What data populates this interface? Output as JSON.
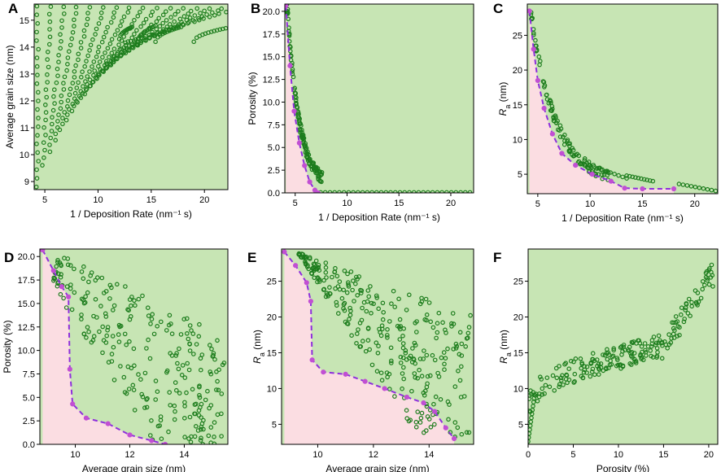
{
  "chart_data": [
    {
      "label": "A",
      "type": "scatter",
      "xlabel": "1 / Deposition Rate (nm⁻¹ s)",
      "ylabel": "Average grain size (nm)",
      "xlim": [
        4,
        22.2
      ],
      "ylim": [
        8.7,
        15.6
      ],
      "xticks": [
        5,
        10,
        15,
        20
      ],
      "yticks": [
        9,
        10,
        11,
        12,
        13,
        14,
        15
      ],
      "generator": "A",
      "frontier": []
    },
    {
      "label": "B",
      "type": "scatter",
      "xlabel": "1 / Deposition Rate (nm⁻¹ s)",
      "ylabel": "Porosity (%)",
      "xlim": [
        4,
        22.2
      ],
      "ylim": [
        0,
        20.8
      ],
      "xticks": [
        5,
        10,
        15,
        20
      ],
      "yticks": [
        0.0,
        2.5,
        5.0,
        7.5,
        10.0,
        12.5,
        15.0,
        17.5,
        20.0
      ],
      "tick_labels_y": [
        "0.0",
        "2.5",
        "5.0",
        "7.5",
        "10.0",
        "12.5",
        "15.0",
        "17.5",
        "20.0"
      ],
      "generator": "B",
      "frontier": [
        [
          4.1,
          20.6
        ],
        [
          4.5,
          14.0
        ],
        [
          4.9,
          9.0
        ],
        [
          5.4,
          5.5
        ],
        [
          5.9,
          3.0
        ],
        [
          6.4,
          1.2
        ],
        [
          6.9,
          0.3
        ],
        [
          7.2,
          0.0
        ]
      ]
    },
    {
      "label": "C",
      "type": "scatter",
      "xlabel": "1 / Deposition Rate (nm⁻¹ s)",
      "ylabel": "R_a (nm)",
      "ylabel_main": "R",
      "ylabel_sub": "a",
      "ylabel_unit": " (nm)",
      "xlim": [
        4,
        22.2
      ],
      "ylim": [
        2.2,
        29.5
      ],
      "xticks": [
        5,
        10,
        15,
        20
      ],
      "yticks": [
        5,
        10,
        15,
        20,
        25
      ],
      "generator": "C",
      "frontier": [
        [
          4.2,
          28.5
        ],
        [
          4.6,
          23
        ],
        [
          5.0,
          18.5
        ],
        [
          5.6,
          14.5
        ],
        [
          6.4,
          10.8
        ],
        [
          7.3,
          8.0
        ],
        [
          8.6,
          6.3
        ],
        [
          10.2,
          5.0
        ],
        [
          12.0,
          4.0
        ],
        [
          13.3,
          3.0
        ],
        [
          15.0,
          2.9
        ],
        [
          18.0,
          2.9
        ]
      ]
    },
    {
      "label": "D",
      "type": "scatter",
      "xlabel": "Average grain size (nm)",
      "ylabel": "Porosity (%)",
      "xlim": [
        8.7,
        15.6
      ],
      "ylim": [
        0,
        20.8
      ],
      "xticks": [
        10,
        12,
        14
      ],
      "yticks": [
        0.0,
        2.5,
        5.0,
        7.5,
        10.0,
        12.5,
        15.0,
        17.5,
        20.0
      ],
      "tick_labels_y": [
        "0.0",
        "2.5",
        "5.0",
        "7.5",
        "10.0",
        "12.5",
        "15.0",
        "17.5",
        "20.0"
      ],
      "generator": "D",
      "frontier": [
        [
          8.8,
          20.7
        ],
        [
          9.2,
          18.5
        ],
        [
          9.5,
          16.8
        ],
        [
          9.75,
          15.7
        ],
        [
          9.8,
          8.0
        ],
        [
          9.9,
          4.3
        ],
        [
          10.4,
          2.8
        ],
        [
          11.2,
          2.2
        ],
        [
          12.0,
          1.0
        ],
        [
          12.8,
          0.4
        ],
        [
          13.3,
          0.0
        ]
      ]
    },
    {
      "label": "E",
      "type": "scatter",
      "xlabel": "Average grain size (nm)",
      "ylabel": "R_a (nm)",
      "ylabel_main": "R",
      "ylabel_sub": "a",
      "ylabel_unit": " (nm)",
      "xlim": [
        8.7,
        15.6
      ],
      "ylim": [
        2.2,
        29.5
      ],
      "xticks": [
        10,
        12,
        14
      ],
      "yticks": [
        5,
        10,
        15,
        20,
        25
      ],
      "generator": "E",
      "frontier": [
        [
          8.8,
          29.1
        ],
        [
          9.2,
          27.2
        ],
        [
          9.6,
          24.8
        ],
        [
          9.75,
          22.2
        ],
        [
          9.8,
          14.0
        ],
        [
          10.2,
          12.3
        ],
        [
          11.0,
          12.0
        ],
        [
          11.7,
          11.0
        ],
        [
          12.4,
          10.0
        ],
        [
          13.2,
          8.8
        ],
        [
          13.8,
          8.0
        ],
        [
          14.2,
          6.8
        ],
        [
          14.6,
          4.5
        ],
        [
          14.9,
          3.0
        ]
      ]
    },
    {
      "label": "F",
      "type": "scatter",
      "xlabel": "Porosity (%)",
      "ylabel": "R_a (nm)",
      "ylabel_main": "R",
      "ylabel_sub": "a",
      "ylabel_unit": " (nm)",
      "xlim": [
        0,
        21.0
      ],
      "ylim": [
        2.2,
        29.5
      ],
      "xticks": [
        0,
        5,
        10,
        15,
        20
      ],
      "yticks": [
        5,
        10,
        15,
        20,
        25
      ],
      "generator": "F",
      "frontier": []
    }
  ]
}
